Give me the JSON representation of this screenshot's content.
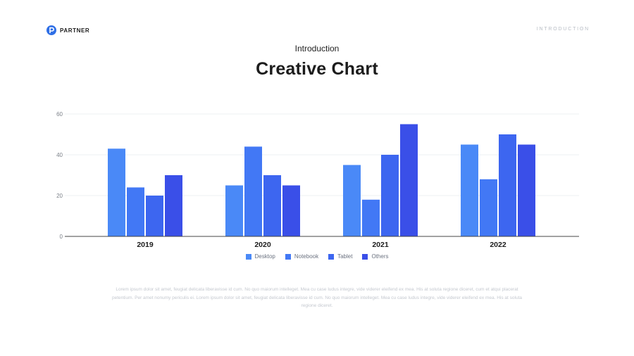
{
  "header": {
    "brand_name": "PARTNER",
    "section_label": "INTRODUCTION"
  },
  "slide": {
    "subtitle": "Introduction",
    "title": "Creative Chart",
    "body": "Lorem ipsum dolor sit amet, feugiat delicata liberavisse id cum. No quo maiorum intelleget. Mea cu case ludus integre, vide viderer eleifend ex mea. His at soluta regione diceret, cum et atqui placerat petentium. Per amet nonumy periculis ei. Lorem ipsum dolor sit amet, feugiat delicata liberavisse id cum. No quo maiorum intelleget. Mea cu case ludus integre, vide viderer eleifend ex mea. His at soluta regione diceret."
  },
  "colors": {
    "accent": "#2f6fe6",
    "Desktop": "#4a89f7",
    "Notebook": "#4278f5",
    "Tablet": "#3d66f0",
    "Others": "#3a4fe8"
  },
  "chart_data": {
    "type": "bar",
    "categories": [
      "2019",
      "2020",
      "2021",
      "2022"
    ],
    "series": [
      {
        "name": "Desktop",
        "values": [
          43,
          25,
          35,
          45
        ]
      },
      {
        "name": "Notebook",
        "values": [
          24,
          44,
          18,
          28
        ]
      },
      {
        "name": "Tablet",
        "values": [
          20,
          30,
          40,
          50
        ]
      },
      {
        "name": "Others",
        "values": [
          30,
          25,
          55,
          45
        ]
      }
    ],
    "yticks": [
      "0",
      "20",
      "40",
      "60"
    ],
    "ylim": [
      0,
      60
    ],
    "grid": true,
    "legend": "bottom",
    "title": "",
    "xlabel": "",
    "ylabel": ""
  }
}
